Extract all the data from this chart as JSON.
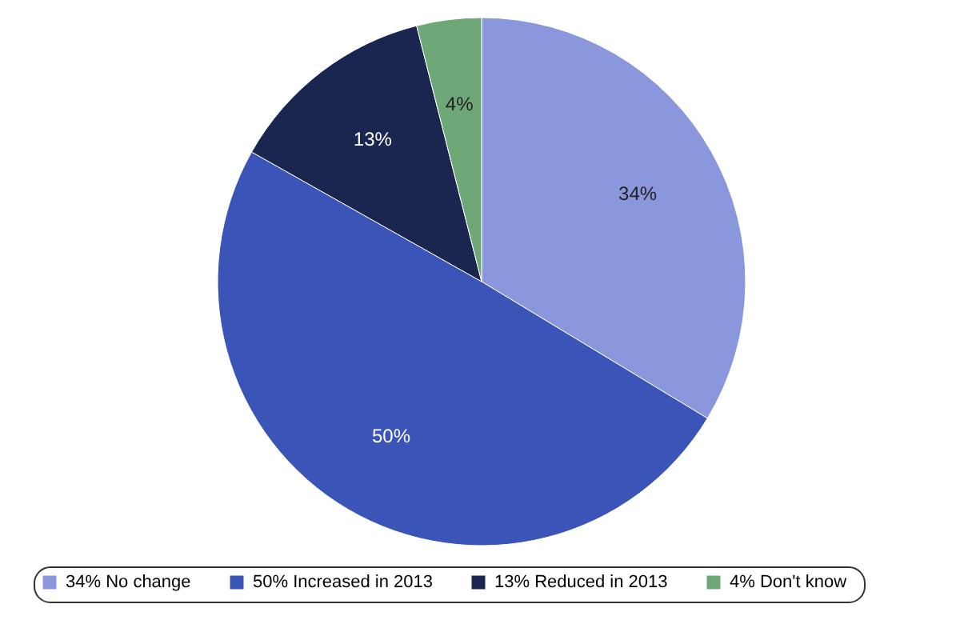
{
  "chart_data": {
    "type": "pie",
    "categories": [
      "No change",
      "Increased in 2013",
      "Reduced in 2013",
      "Don't know"
    ],
    "values": [
      34,
      50,
      13,
      4
    ],
    "value_labels": [
      "34%",
      "50%",
      "13%",
      "4%"
    ],
    "colors": [
      "#8a97dd",
      "#3a54b8",
      "#1a2550",
      "#6fa878"
    ],
    "legend": "bottom"
  }
}
